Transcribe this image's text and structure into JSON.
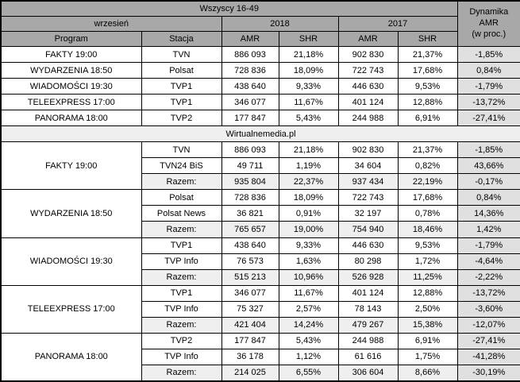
{
  "chart_data": {
    "type": "table",
    "title": "Wszyscy 16-49",
    "period": "wrzesień",
    "year_left": "2018",
    "year_right": "2017",
    "column_headers": {
      "program": "Program",
      "station": "Stacja",
      "amr": "AMR",
      "shr": "SHR"
    },
    "dynamika_header": {
      "line1": "Dynamika",
      "line2": "AMR",
      "line3": "(w proc.)"
    },
    "source_label": "Wirtualnemedia.pl",
    "total_label": "Razem:",
    "summary_rows": [
      {
        "program": "FAKTY 19:00",
        "station": "TVN",
        "amr2018": "886 093",
        "shr2018": "21,18%",
        "amr2017": "902 830",
        "shr2017": "21,37%",
        "dynamika": "-1,85%"
      },
      {
        "program": "WYDARZENIA 18:50",
        "station": "Polsat",
        "amr2018": "728 836",
        "shr2018": "18,09%",
        "amr2017": "722 743",
        "shr2017": "17,68%",
        "dynamika": "0,84%"
      },
      {
        "program": "WIADOMOŚCI 19:30",
        "station": "TVP1",
        "amr2018": "438 640",
        "shr2018": "9,33%",
        "amr2017": "446 630",
        "shr2017": "9,53%",
        "dynamika": "-1,79%"
      },
      {
        "program": "TELEEXPRESS 17:00",
        "station": "TVP1",
        "amr2018": "346 077",
        "shr2018": "11,67%",
        "amr2017": "401 124",
        "shr2017": "12,88%",
        "dynamika": "-13,72%"
      },
      {
        "program": "PANORAMA 18:00",
        "station": "TVP2",
        "amr2018": "177 847",
        "shr2018": "5,43%",
        "amr2017": "244 988",
        "shr2017": "6,91%",
        "dynamika": "-27,41%"
      }
    ],
    "detail_groups": [
      {
        "program": "FAKTY 19:00",
        "rows": [
          {
            "station": "TVN",
            "amr2018": "886 093",
            "shr2018": "21,18%",
            "amr2017": "902 830",
            "shr2017": "21,37%",
            "dynamika": "-1,85%",
            "is_total": false
          },
          {
            "station": "TVN24 BiS",
            "amr2018": "49 711",
            "shr2018": "1,19%",
            "amr2017": "34 604",
            "shr2017": "0,82%",
            "dynamika": "43,66%",
            "is_total": false
          },
          {
            "station": "Razem:",
            "amr2018": "935 804",
            "shr2018": "22,37%",
            "amr2017": "937 434",
            "shr2017": "22,19%",
            "dynamika": "-0,17%",
            "is_total": true
          }
        ]
      },
      {
        "program": "WYDARZENIA 18:50",
        "rows": [
          {
            "station": "Polsat",
            "amr2018": "728 836",
            "shr2018": "18,09%",
            "amr2017": "722 743",
            "shr2017": "17,68%",
            "dynamika": "0,84%",
            "is_total": false
          },
          {
            "station": "Polsat News",
            "amr2018": "36 821",
            "shr2018": "0,91%",
            "amr2017": "32 197",
            "shr2017": "0,78%",
            "dynamika": "14,36%",
            "is_total": false
          },
          {
            "station": "Razem:",
            "amr2018": "765 657",
            "shr2018": "19,00%",
            "amr2017": "754 940",
            "shr2017": "18,46%",
            "dynamika": "1,42%",
            "is_total": true
          }
        ]
      },
      {
        "program": "WIADOMOŚCI 19:30",
        "rows": [
          {
            "station": "TVP1",
            "amr2018": "438 640",
            "shr2018": "9,33%",
            "amr2017": "446 630",
            "shr2017": "9,53%",
            "dynamika": "-1,79%",
            "is_total": false
          },
          {
            "station": "TVP Info",
            "amr2018": "76 573",
            "shr2018": "1,63%",
            "amr2017": "80 298",
            "shr2017": "1,72%",
            "dynamika": "-4,64%",
            "is_total": false
          },
          {
            "station": "Razem:",
            "amr2018": "515 213",
            "shr2018": "10,96%",
            "amr2017": "526 928",
            "shr2017": "11,25%",
            "dynamika": "-2,22%",
            "is_total": true
          }
        ]
      },
      {
        "program": "TELEEXPRESS 17:00",
        "rows": [
          {
            "station": "TVP1",
            "amr2018": "346 077",
            "shr2018": "11,67%",
            "amr2017": "401 124",
            "shr2017": "12,88%",
            "dynamika": "-13,72%",
            "is_total": false
          },
          {
            "station": "TVP Info",
            "amr2018": "75 327",
            "shr2018": "2,57%",
            "amr2017": "78 143",
            "shr2017": "2,50%",
            "dynamika": "-3,60%",
            "is_total": false
          },
          {
            "station": "Razem:",
            "amr2018": "421 404",
            "shr2018": "14,24%",
            "amr2017": "479 267",
            "shr2017": "15,38%",
            "dynamika": "-12,07%",
            "is_total": true
          }
        ]
      },
      {
        "program": "PANORAMA 18:00",
        "rows": [
          {
            "station": "TVP2",
            "amr2018": "177 847",
            "shr2018": "5,43%",
            "amr2017": "244 988",
            "shr2017": "6,91%",
            "dynamika": "-27,41%",
            "is_total": false
          },
          {
            "station": "TVP Info",
            "amr2018": "36 178",
            "shr2018": "1,12%",
            "amr2017": "61 616",
            "shr2017": "1,75%",
            "dynamika": "-41,28%",
            "is_total": false
          },
          {
            "station": "Razem:",
            "amr2018": "214 025",
            "shr2018": "6,55%",
            "amr2017": "306 604",
            "shr2017": "8,66%",
            "dynamika": "-30,19%",
            "is_total": true
          }
        ]
      }
    ]
  },
  "colors": {
    "header_bg": "#a8a8a8",
    "total_row_bg": "#efefef",
    "source_row_bg": "#efefef",
    "dynamika_cell_bg": "#e0e0e0",
    "border": "#000000",
    "text": "#000000",
    "cell_bg": "#ffffff"
  }
}
